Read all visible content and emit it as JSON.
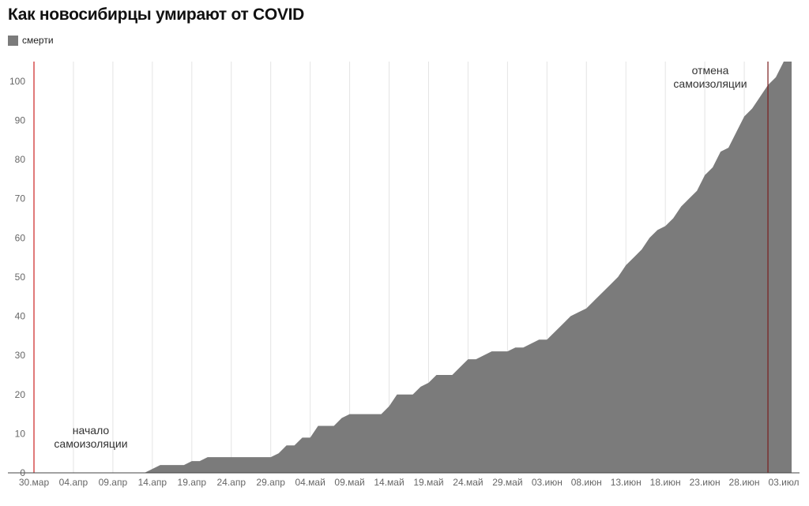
{
  "chart_data": {
    "type": "area",
    "title": "Как новосибирцы умирают от COVID",
    "xlabel": "",
    "ylabel": "",
    "ylim": [
      0,
      105
    ],
    "yticks": [
      0,
      10,
      20,
      30,
      40,
      50,
      60,
      70,
      80,
      90,
      100
    ],
    "xlim": [
      "2020-03-30",
      "2020-07-04"
    ],
    "xtick_labels": [
      "30.мар",
      "04.апр",
      "09.апр",
      "14.апр",
      "19.апр",
      "24.апр",
      "29.апр",
      "04.май",
      "09.май",
      "14.май",
      "19.май",
      "24.май",
      "29.май",
      "03.июн",
      "08.июн",
      "13.июн",
      "18.июн",
      "23.июн",
      "28.июн",
      "03.июл"
    ],
    "grid": {
      "x": true,
      "y": false
    },
    "legend": {
      "placement": "top-left",
      "entries": [
        "смерти"
      ]
    },
    "colors": {
      "area": "#7b7b7b",
      "grid": "#e4e4e4",
      "marker": "#cc2222",
      "marker_dark": "#7a1e1e",
      "axis": "#666666"
    },
    "series": [
      {
        "name": "смерти",
        "x": [
          "2020-03-30",
          "2020-04-13",
          "2020-04-15",
          "2020-04-17",
          "2020-04-18",
          "2020-04-19",
          "2020-04-20",
          "2020-04-21",
          "2020-04-22",
          "2020-04-29",
          "2020-04-30",
          "2020-05-01",
          "2020-05-02",
          "2020-05-03",
          "2020-05-04",
          "2020-05-05",
          "2020-05-06",
          "2020-05-07",
          "2020-05-08",
          "2020-05-09",
          "2020-05-10",
          "2020-05-11",
          "2020-05-13",
          "2020-05-14",
          "2020-05-15",
          "2020-05-16",
          "2020-05-17",
          "2020-05-18",
          "2020-05-19",
          "2020-05-20",
          "2020-05-21",
          "2020-05-22",
          "2020-05-23",
          "2020-05-24",
          "2020-05-25",
          "2020-05-26",
          "2020-05-27",
          "2020-05-28",
          "2020-05-29",
          "2020-05-30",
          "2020-05-31",
          "2020-06-01",
          "2020-06-02",
          "2020-06-03",
          "2020-06-04",
          "2020-06-05",
          "2020-06-06",
          "2020-06-07",
          "2020-06-08",
          "2020-06-09",
          "2020-06-10",
          "2020-06-11",
          "2020-06-12",
          "2020-06-13",
          "2020-06-14",
          "2020-06-15",
          "2020-06-16",
          "2020-06-17",
          "2020-06-18",
          "2020-06-19",
          "2020-06-20",
          "2020-06-21",
          "2020-06-22",
          "2020-06-23",
          "2020-06-24",
          "2020-06-25",
          "2020-06-26",
          "2020-06-27",
          "2020-06-28",
          "2020-06-29",
          "2020-06-30",
          "2020-07-01",
          "2020-07-02",
          "2020-07-03",
          "2020-07-04"
        ],
        "values": [
          0,
          0,
          2,
          2,
          2,
          3,
          3,
          4,
          4,
          4,
          5,
          7,
          7,
          9,
          9,
          12,
          12,
          12,
          14,
          15,
          15,
          15,
          15,
          17,
          20,
          20,
          20,
          22,
          23,
          25,
          25,
          25,
          27,
          29,
          29,
          30,
          31,
          31,
          31,
          32,
          32,
          33,
          34,
          34,
          36,
          38,
          40,
          41,
          42,
          44,
          46,
          48,
          50,
          53,
          55,
          57,
          60,
          62,
          63,
          65,
          68,
          70,
          72,
          76,
          78,
          82,
          83,
          87,
          91,
          93,
          96,
          99,
          101,
          105,
          105
        ]
      }
    ],
    "annotations": [
      {
        "id": "start",
        "date": "2020-03-30",
        "line1": "начало",
        "line2": "самоизоляции",
        "color": "#cc2222"
      },
      {
        "id": "end",
        "date": "2020-07-01",
        "line1": "отмена",
        "line2": "самоизоляции",
        "color": "#7a1e1e"
      }
    ]
  }
}
